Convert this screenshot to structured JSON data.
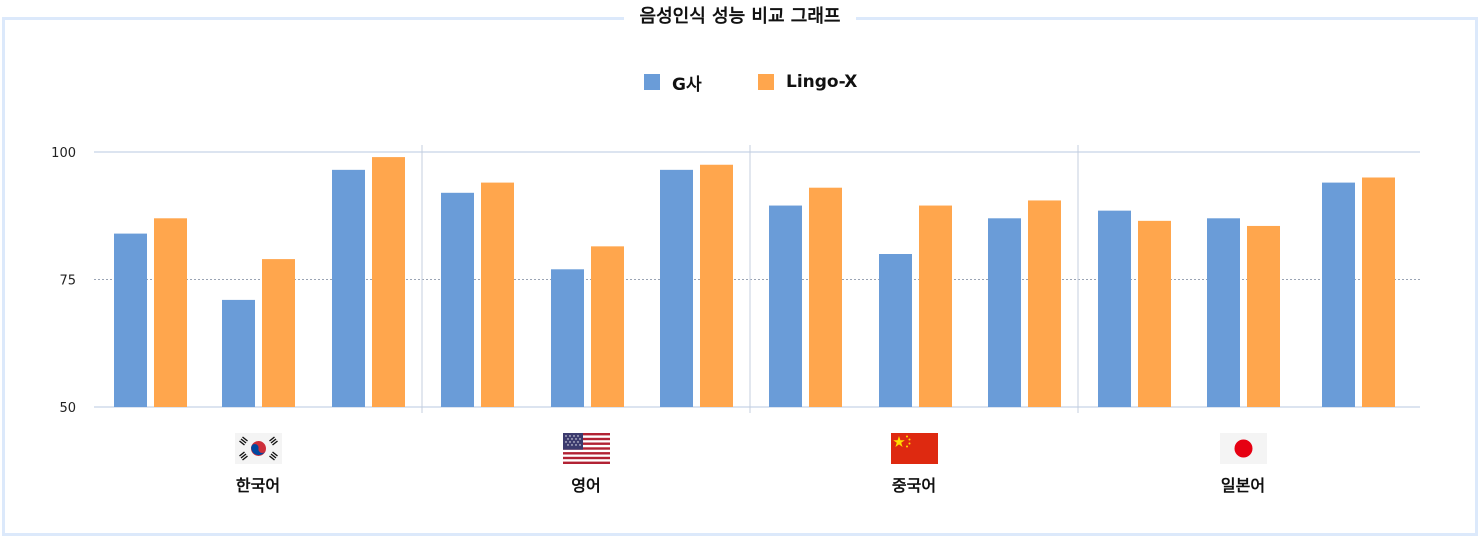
{
  "title": "음성인식 성능 비교 그래프",
  "colors": {
    "g": "#6a9cd8",
    "lingo": "#ffa64d",
    "frame": "#dce9fb"
  },
  "chart_data": {
    "type": "bar",
    "ylim": [
      50,
      100
    ],
    "yticks": [
      100,
      75,
      50
    ],
    "grid": true,
    "legend_position": "top-center",
    "series": [
      {
        "name": "G사",
        "values": [
          84,
          71,
          96.5,
          92,
          77,
          96.5,
          89.5,
          80,
          87,
          88.5,
          87,
          94
        ]
      },
      {
        "name": "Lingo-X",
        "values": [
          87,
          79,
          99,
          94,
          81.5,
          97.5,
          93,
          89.5,
          90.5,
          86.5,
          85.5,
          95
        ]
      }
    ],
    "groups": [
      {
        "label": "한국어",
        "flag": "korea-flag-icon"
      },
      {
        "label": "영어",
        "flag": "usa-flag-icon"
      },
      {
        "label": "중국어",
        "flag": "china-flag-icon"
      },
      {
        "label": "일본어",
        "flag": "japan-flag-icon"
      }
    ]
  }
}
